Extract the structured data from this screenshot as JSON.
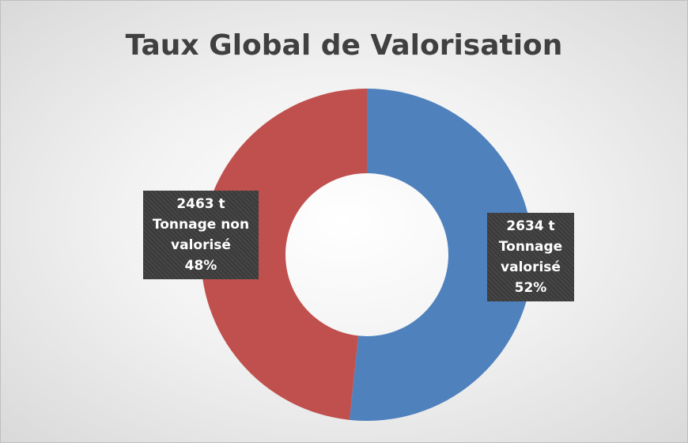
{
  "chart_data": {
    "type": "donut",
    "title": "Taux Global de Valorisation",
    "categories": [
      "Tonnage valorisé",
      "Tonnage non valorisé"
    ],
    "values": [
      2634,
      2463
    ],
    "value_labels": [
      "2634 t",
      "2463 t"
    ],
    "percent_labels": [
      "52%",
      "48%"
    ],
    "colors": [
      "#4f81bd",
      "#c0504d"
    ]
  }
}
